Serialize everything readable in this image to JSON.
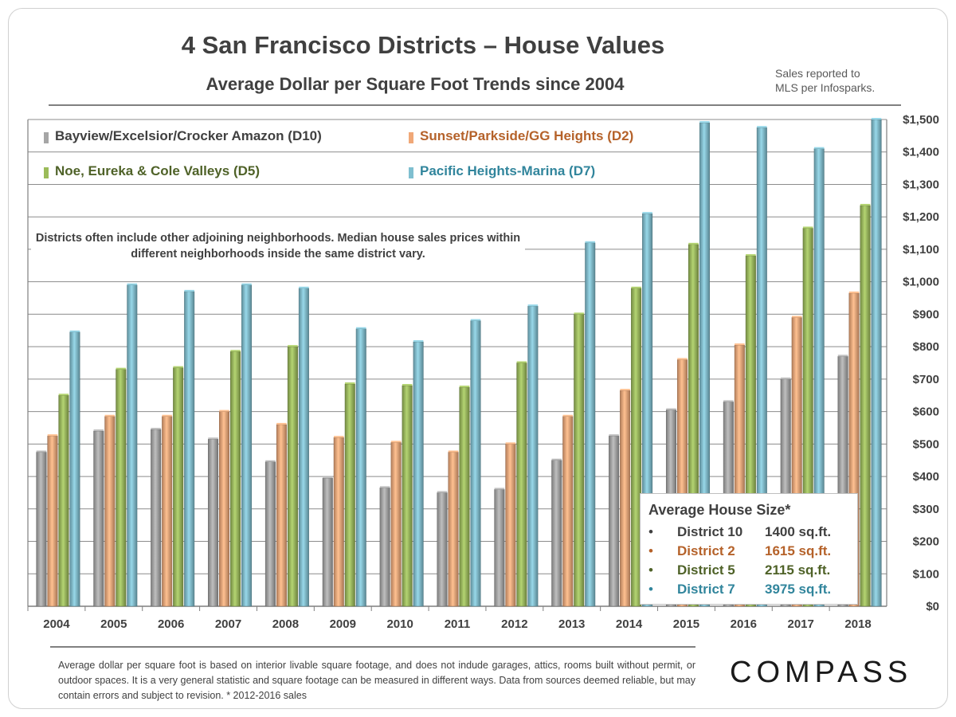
{
  "title": "4 San Francisco Districts – House Values",
  "subtitle": "Average Dollar  per Square Foot Trends since 2004",
  "source_note": [
    "Sales reported to",
    "MLS per Infosparks."
  ],
  "note": "Districts  often include other adjoining neighborhoods. Median house sales prices within different neighborhoods inside the same district vary.",
  "size_box": {
    "heading": "Average House Size*",
    "rows": [
      {
        "bullet": "•",
        "district": "District 10",
        "size": "1400 sq.ft.",
        "color": "#404040"
      },
      {
        "bullet": "•",
        "district": "District 2",
        "size": "1615 sq.ft.",
        "color": "#b5622a"
      },
      {
        "bullet": "•",
        "district": "District 5",
        "size": "2115 sq.ft.",
        "color": "#4f6228"
      },
      {
        "bullet": "•",
        "district": "District 7",
        "size": "3975 sq.ft.",
        "color": "#31859c"
      }
    ]
  },
  "footnote": "Average dollar per square foot is based on interior livable square footage, and does not indude garages, attics, rooms built without permit, or outdoor spaces. It is a very general statistic and square footage can be measured in different ways. Data from sources deemed reliable, but may contain errors and subject to revision. * 2012-2016 sales",
  "logo": "COMPASS",
  "chart_data": {
    "type": "bar",
    "categories": [
      "2004",
      "2005",
      "2006",
      "2007",
      "2008",
      "2009",
      "2010",
      "2011",
      "2012",
      "2013",
      "2014",
      "2015",
      "2016",
      "2017",
      "2018"
    ],
    "series": [
      {
        "name": "Bayview/Excelsior/Crocker Amazon (D10)",
        "color": "#a6a6a6",
        "text_color": "#404040",
        "values": [
          475,
          540,
          545,
          515,
          445,
          395,
          365,
          350,
          360,
          450,
          525,
          605,
          630,
          700,
          770
        ]
      },
      {
        "name": "Sunset/Parkside/GG Heights (D2)",
        "color": "#f0a878",
        "text_color": "#b5622a",
        "values": [
          525,
          585,
          585,
          600,
          560,
          520,
          505,
          475,
          500,
          585,
          665,
          760,
          805,
          890,
          965
        ]
      },
      {
        "name": "Noe, Eureka & Cole Valleys (D5)",
        "color": "#9bbb59",
        "text_color": "#4f6228",
        "values": [
          650,
          730,
          735,
          785,
          800,
          685,
          680,
          675,
          750,
          900,
          980,
          1115,
          1080,
          1165,
          1235
        ]
      },
      {
        "name": "Pacific Heights-Marina (D7)",
        "color": "#7fbfd0",
        "text_color": "#31859c",
        "values": [
          845,
          990,
          970,
          990,
          980,
          855,
          815,
          880,
          925,
          1120,
          1210,
          1490,
          1475,
          1410,
          1500
        ]
      }
    ],
    "y_ticks": [
      "$0",
      "$100",
      "$200",
      "$300",
      "$400",
      "$500",
      "$600",
      "$700",
      "$800",
      "$900",
      "$1,000",
      "$1,100",
      "$1,200",
      "$1,300",
      "$1,400",
      "$1,500"
    ],
    "ylim": [
      0,
      1500
    ],
    "grid": true,
    "legend": "top-left",
    "y_axis_side": "right"
  }
}
